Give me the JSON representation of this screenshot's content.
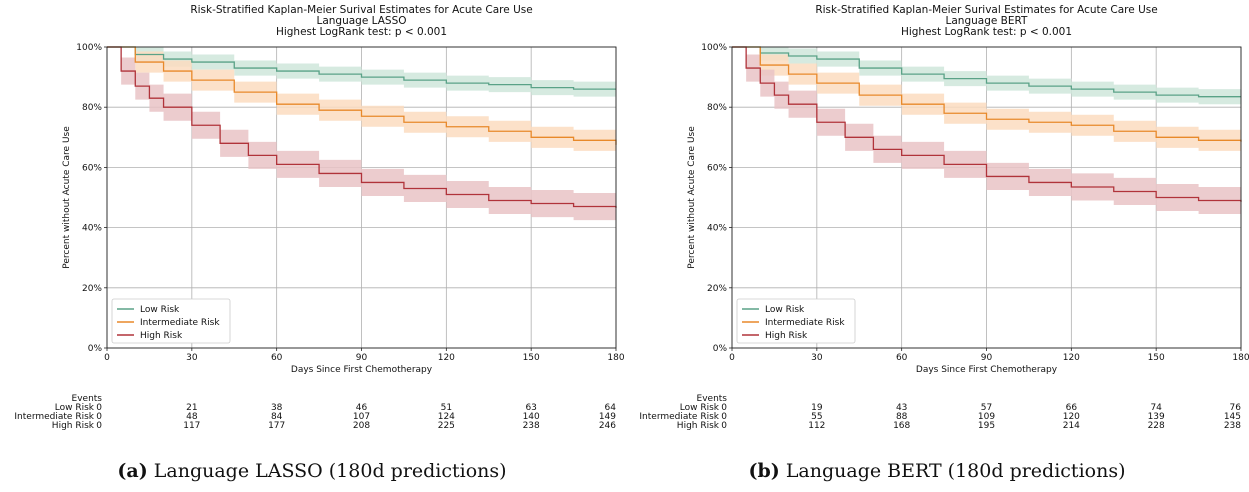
{
  "colors": {
    "low": "#5aa287",
    "intermediate": "#e8892a",
    "high": "#b0333a",
    "low_band": "#cfe6da",
    "intermediate_band": "#fbdcbf",
    "high_band": "#e9c3c5",
    "grid": "#b0b0b0"
  },
  "chart_data": [
    {
      "type": "line",
      "title": [
        "Risk-Stratified Kaplan-Meier Surival Estimates for Acute Care Use",
        "Language LASSO",
        "Highest LogRank test: p < 0.001"
      ],
      "xlabel": "Days Since First Chemotherapy",
      "ylabel": "Percent without Acute Care Use",
      "xlim": [
        0,
        180
      ],
      "ylim": [
        0,
        100
      ],
      "xticks": [
        0,
        30,
        60,
        90,
        120,
        150,
        180
      ],
      "yticks": [
        0,
        20,
        40,
        60,
        80,
        100
      ],
      "ytick_labels": [
        "0%",
        "20%",
        "40%",
        "60%",
        "80%",
        "100%"
      ],
      "grid": true,
      "legend_position": "lower-left",
      "series": [
        {
          "name": "Low Risk",
          "color_key": "low",
          "x": [
            0,
            10,
            20,
            30,
            45,
            60,
            75,
            90,
            105,
            120,
            135,
            150,
            165,
            180
          ],
          "y": [
            100,
            97.5,
            96,
            95,
            93,
            92,
            91,
            90,
            89,
            88,
            87.5,
            86.5,
            86,
            86
          ],
          "band": 2.5
        },
        {
          "name": "Intermediate Risk",
          "color_key": "intermediate",
          "x": [
            0,
            10,
            20,
            30,
            45,
            60,
            75,
            90,
            105,
            120,
            135,
            150,
            165,
            180
          ],
          "y": [
            100,
            95,
            92,
            89,
            85,
            81,
            79,
            77,
            75,
            73.5,
            72,
            70,
            69,
            67.5
          ],
          "band": 3.5
        },
        {
          "name": "High Risk",
          "color_key": "high",
          "x": [
            0,
            5,
            10,
            15,
            20,
            30,
            40,
            50,
            60,
            75,
            90,
            105,
            120,
            135,
            150,
            165,
            180
          ],
          "y": [
            100,
            92,
            87,
            83,
            80,
            74,
            68,
            64,
            61,
            58,
            55,
            53,
            51,
            49,
            48,
            47,
            46.5
          ],
          "band": 4.5
        }
      ],
      "events": {
        "header": "Events",
        "columns": [
          0,
          30,
          60,
          90,
          120,
          150,
          180
        ],
        "rows": [
          {
            "label": "Low Risk",
            "values": [
              "0",
              "21",
              "38",
              "46",
              "51",
              "63",
              "64"
            ]
          },
          {
            "label": "Intermediate Risk",
            "values": [
              "0",
              "48",
              "84",
              "107",
              "124",
              "140",
              "149"
            ]
          },
          {
            "label": "High Risk",
            "values": [
              "0",
              "117",
              "177",
              "208",
              "225",
              "238",
              "246"
            ]
          }
        ]
      },
      "caption_label": "(a)",
      "caption_text": "Language LASSO (180d predictions)"
    },
    {
      "type": "line",
      "title": [
        "Risk-Stratified Kaplan-Meier Surival Estimates for Acute Care Use",
        "Language BERT",
        "Highest LogRank test: p < 0.001"
      ],
      "xlabel": "Days Since First Chemotherapy",
      "ylabel": "Percent without Acute Care Use",
      "xlim": [
        0,
        180
      ],
      "ylim": [
        0,
        100
      ],
      "xticks": [
        0,
        30,
        60,
        90,
        120,
        150,
        180
      ],
      "yticks": [
        0,
        20,
        40,
        60,
        80,
        100
      ],
      "ytick_labels": [
        "0%",
        "20%",
        "40%",
        "60%",
        "80%",
        "100%"
      ],
      "grid": true,
      "legend_position": "lower-left",
      "series": [
        {
          "name": "Low Risk",
          "color_key": "low",
          "x": [
            0,
            10,
            20,
            30,
            45,
            60,
            75,
            90,
            105,
            120,
            135,
            150,
            165,
            180
          ],
          "y": [
            100,
            98,
            97,
            96,
            93,
            91,
            89.5,
            88,
            87,
            86,
            85,
            84,
            83.5,
            83.5
          ],
          "band": 2.5
        },
        {
          "name": "Intermediate Risk",
          "color_key": "intermediate",
          "x": [
            0,
            10,
            20,
            30,
            45,
            60,
            75,
            90,
            105,
            120,
            135,
            150,
            165,
            180
          ],
          "y": [
            100,
            94,
            91,
            88,
            84,
            81,
            78,
            76,
            75,
            74,
            72,
            70,
            69,
            68.5
          ],
          "band": 3.5
        },
        {
          "name": "High Risk",
          "color_key": "high",
          "x": [
            0,
            5,
            10,
            15,
            20,
            30,
            40,
            50,
            60,
            75,
            90,
            105,
            120,
            135,
            150,
            165,
            180
          ],
          "y": [
            100,
            93,
            88,
            84,
            81,
            75,
            70,
            66,
            64,
            61,
            57,
            55,
            53.5,
            52,
            50,
            49,
            48.5
          ],
          "band": 4.5
        }
      ],
      "events": {
        "header": "Events",
        "columns": [
          0,
          30,
          60,
          90,
          120,
          150,
          180
        ],
        "rows": [
          {
            "label": "Low Risk",
            "values": [
              "0",
              "19",
              "43",
              "57",
              "66",
              "74",
              "76"
            ]
          },
          {
            "label": "Intermediate Risk",
            "values": [
              "0",
              "55",
              "88",
              "109",
              "120",
              "139",
              "145"
            ]
          },
          {
            "label": "High Risk",
            "values": [
              "0",
              "112",
              "168",
              "195",
              "214",
              "228",
              "238"
            ]
          }
        ]
      },
      "caption_label": "(b)",
      "caption_text": "Language BERT (180d predictions)"
    }
  ]
}
